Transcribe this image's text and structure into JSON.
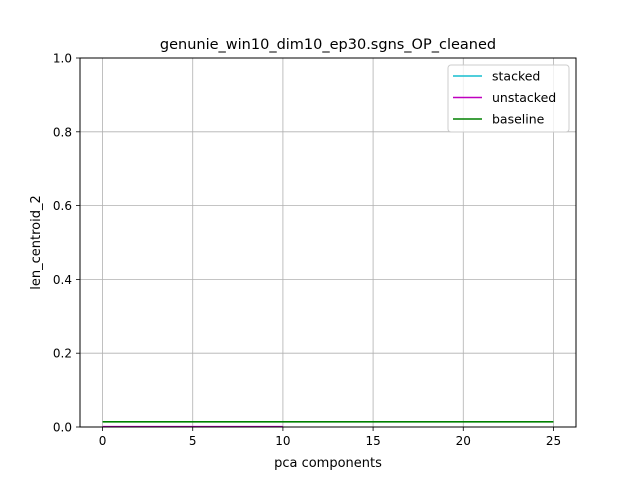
{
  "chart_data": {
    "type": "line",
    "title": "genunie_win10_dim10_ep30.sgns_OP_cleaned",
    "xlabel": "pca components",
    "ylabel": "len_centroid_2",
    "xlim": [
      -1.25,
      26.25
    ],
    "ylim": [
      0,
      1
    ],
    "xticks": [
      0,
      5,
      10,
      15,
      20,
      25
    ],
    "xtick_labels": [
      "0",
      "5",
      "10",
      "15",
      "20",
      "25"
    ],
    "yticks": [
      0.0,
      0.2,
      0.4,
      0.6,
      0.8,
      1.0
    ],
    "ytick_labels": [
      "0.0",
      "0.2",
      "0.4",
      "0.6",
      "0.8",
      "1.0"
    ],
    "grid": true,
    "legend_position": "top-right",
    "series": [
      {
        "name": "stacked",
        "color": "#17becf",
        "x": [],
        "y": []
      },
      {
        "name": "unstacked",
        "color": "#bf00bf",
        "x": [
          0,
          10
        ],
        "y": [
          0.001,
          0.001
        ]
      },
      {
        "name": "baseline",
        "color": "#008000",
        "x": [
          0,
          25
        ],
        "y": [
          0.014,
          0.014
        ]
      }
    ]
  }
}
